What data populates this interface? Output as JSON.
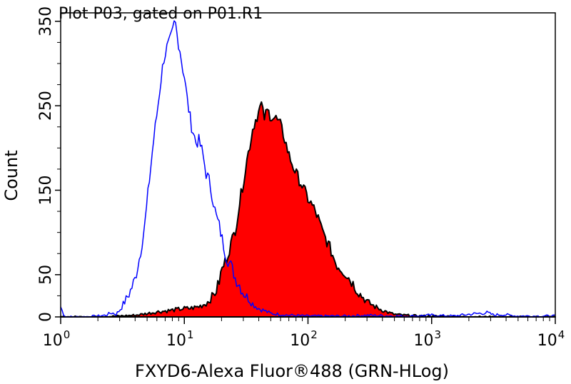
{
  "chart_data": {
    "type": "area",
    "title": "Plot P03, gated on P01.R1",
    "xlabel": "FXYD6-Alexa Fluor®488 (GRN-HLog)",
    "ylabel": "Count",
    "x_scale": "log",
    "xlim": [
      1,
      10000
    ],
    "ylim": [
      0,
      360
    ],
    "x_ticks": [
      {
        "base": "10",
        "exp": "0",
        "value": 1
      },
      {
        "base": "10",
        "exp": "1",
        "value": 10
      },
      {
        "base": "10",
        "exp": "2",
        "value": 100
      },
      {
        "base": "10",
        "exp": "3",
        "value": 1000
      },
      {
        "base": "10",
        "exp": "4",
        "value": 10000
      }
    ],
    "y_ticks": [
      {
        "label": "0",
        "value": 0
      },
      {
        "label": "50",
        "value": 50
      },
      {
        "label": "150",
        "value": 150
      },
      {
        "label": "250",
        "value": 250
      },
      {
        "label": "350",
        "value": 350
      }
    ],
    "grid": false,
    "series": [
      {
        "style": "outline",
        "color": "#0000ff",
        "x": [
          1,
          1.05,
          1.1,
          1.2,
          1.5,
          2,
          2.3,
          2.6,
          2.8,
          3.0,
          3.3,
          3.6,
          4.0,
          4.4,
          4.8,
          5.2,
          5.6,
          6.0,
          6.4,
          6.8,
          7.2,
          7.6,
          8.0,
          8.4,
          8.8,
          9.2,
          9.6,
          10.0,
          10.5,
          11,
          11.5,
          12,
          12.5,
          13,
          14,
          15,
          16,
          17,
          18,
          19,
          20,
          22,
          24,
          26,
          28,
          30,
          33,
          36,
          40,
          45,
          50,
          60,
          70,
          100,
          150,
          200,
          300,
          500,
          700,
          1000,
          1500,
          2000,
          2800,
          3200,
          3600,
          5000,
          7000,
          10000
        ],
        "y": [
          12,
          4,
          0,
          0,
          0,
          1,
          2,
          5,
          3,
          8,
          18,
          28,
          45,
          75,
          110,
          160,
          205,
          240,
          275,
          305,
          318,
          325,
          335,
          352,
          330,
          318,
          298,
          285,
          260,
          240,
          225,
          215,
          205,
          210,
          195,
          170,
          160,
          140,
          120,
          110,
          95,
          70,
          60,
          45,
          38,
          28,
          22,
          15,
          10,
          7,
          4,
          3,
          2,
          1,
          1,
          1,
          2,
          1,
          1,
          2,
          1,
          3,
          5,
          2,
          3,
          1,
          1,
          1
        ]
      },
      {
        "style": "filled",
        "color": "#ff0000",
        "edge_color": "#000000",
        "x": [
          1,
          1.5,
          2,
          3,
          4,
          4.5,
          5,
          6,
          7,
          8,
          9,
          10,
          11,
          12,
          13,
          14,
          15,
          16,
          17,
          18,
          19,
          20,
          22,
          24,
          26,
          28,
          30,
          32,
          34,
          36,
          38,
          40,
          42,
          44,
          47,
          50,
          55,
          60,
          65,
          70,
          75,
          80,
          90,
          100,
          110,
          120,
          130,
          150,
          170,
          200,
          230,
          260,
          300,
          350,
          400,
          450,
          500,
          600,
          800,
          1000,
          2000,
          5000,
          10000
        ],
        "y": [
          0,
          0,
          0,
          1,
          2,
          3,
          4,
          6,
          7,
          8,
          9,
          10,
          10,
          11,
          12,
          14,
          16,
          20,
          25,
          30,
          40,
          55,
          70,
          88,
          105,
          135,
          160,
          185,
          205,
          225,
          235,
          243,
          252,
          235,
          244,
          238,
          235,
          227,
          210,
          192,
          180,
          170,
          155,
          140,
          130,
          118,
          102,
          82,
          62,
          52,
          40,
          28,
          18,
          12,
          8,
          5,
          3,
          2,
          1,
          1,
          0,
          0,
          0
        ]
      }
    ]
  }
}
